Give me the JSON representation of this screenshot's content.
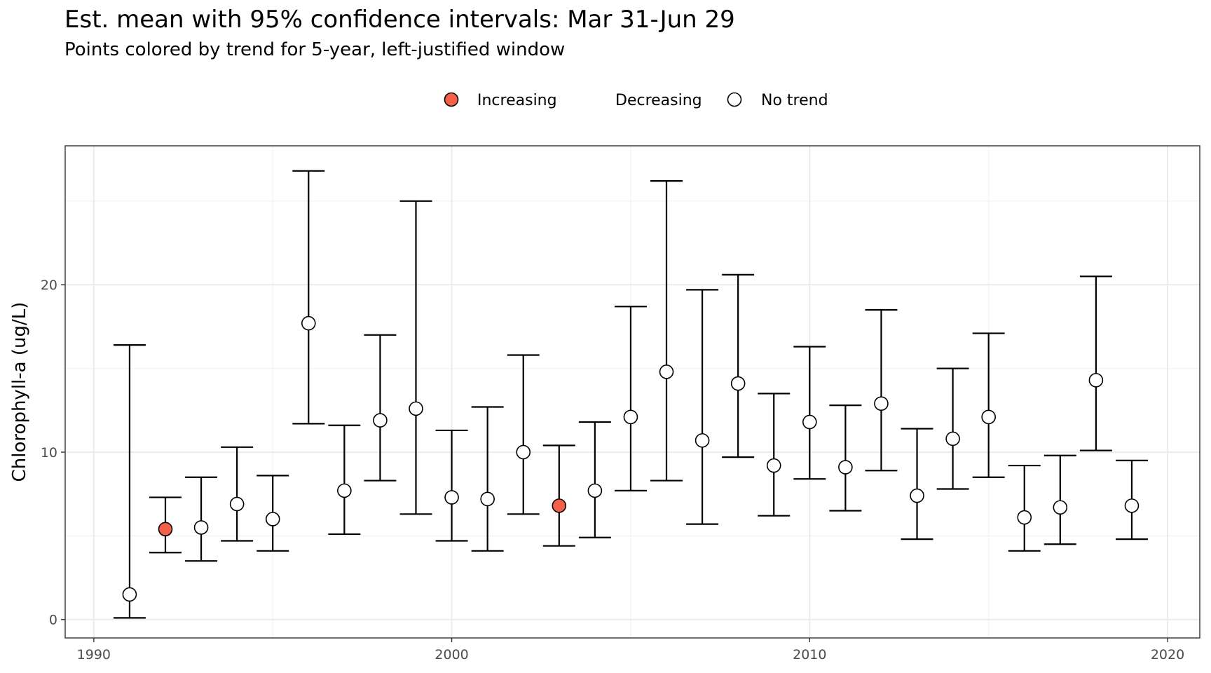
{
  "chart_data": {
    "type": "scatter",
    "title": "Est. mean with 95% confidence intervals: Mar 31-Jun 29",
    "subtitle": "Points colored by trend for 5-year, left-justified window",
    "xlabel": "",
    "ylabel": "Chlorophyll-a (ug/L)",
    "xlim": [
      1989.2,
      2020.9
    ],
    "ylim": [
      -1.1,
      28.3
    ],
    "x_ticks": [
      1990,
      2000,
      2010,
      2020
    ],
    "y_ticks": [
      0,
      10,
      20
    ],
    "grid": true,
    "legend": {
      "position": "top",
      "entries": [
        {
          "label": "Increasing",
          "fill": "#F4614B"
        },
        {
          "label": "Decreasing",
          "fill": ""
        },
        {
          "label": "No trend",
          "fill": "#FFFFFF"
        }
      ]
    },
    "colors": {
      "Increasing": "#F4614B",
      "No trend": "#FFFFFF",
      "Decreasing": "#4A90D9"
    },
    "points": [
      {
        "x": 1991,
        "mean": 1.5,
        "lower": 0.1,
        "upper": 16.4,
        "trend": "No trend"
      },
      {
        "x": 1992,
        "mean": 5.4,
        "lower": 4.0,
        "upper": 7.3,
        "trend": "Increasing"
      },
      {
        "x": 1993,
        "mean": 5.5,
        "lower": 3.5,
        "upper": 8.5,
        "trend": "No trend"
      },
      {
        "x": 1994,
        "mean": 6.9,
        "lower": 4.7,
        "upper": 10.3,
        "trend": "No trend"
      },
      {
        "x": 1995,
        "mean": 6.0,
        "lower": 4.1,
        "upper": 8.6,
        "trend": "No trend"
      },
      {
        "x": 1996,
        "mean": 17.7,
        "lower": 11.7,
        "upper": 26.8,
        "trend": "No trend"
      },
      {
        "x": 1997,
        "mean": 7.7,
        "lower": 5.1,
        "upper": 11.6,
        "trend": "No trend"
      },
      {
        "x": 1998,
        "mean": 11.9,
        "lower": 8.3,
        "upper": 17.0,
        "trend": "No trend"
      },
      {
        "x": 1999,
        "mean": 12.6,
        "lower": 6.3,
        "upper": 25.0,
        "trend": "No trend"
      },
      {
        "x": 2000,
        "mean": 7.3,
        "lower": 4.7,
        "upper": 11.3,
        "trend": "No trend"
      },
      {
        "x": 2001,
        "mean": 7.2,
        "lower": 4.1,
        "upper": 12.7,
        "trend": "No trend"
      },
      {
        "x": 2002,
        "mean": 10.0,
        "lower": 6.3,
        "upper": 15.8,
        "trend": "No trend"
      },
      {
        "x": 2003,
        "mean": 6.8,
        "lower": 4.4,
        "upper": 10.4,
        "trend": "Increasing"
      },
      {
        "x": 2004,
        "mean": 7.7,
        "lower": 4.9,
        "upper": 11.8,
        "trend": "No trend"
      },
      {
        "x": 2005,
        "mean": 12.1,
        "lower": 7.7,
        "upper": 18.7,
        "trend": "No trend"
      },
      {
        "x": 2006,
        "mean": 14.8,
        "lower": 8.3,
        "upper": 26.2,
        "trend": "No trend"
      },
      {
        "x": 2007,
        "mean": 10.7,
        "lower": 5.7,
        "upper": 19.7,
        "trend": "No trend"
      },
      {
        "x": 2008,
        "mean": 14.1,
        "lower": 9.7,
        "upper": 20.6,
        "trend": "No trend"
      },
      {
        "x": 2009,
        "mean": 9.2,
        "lower": 6.2,
        "upper": 13.5,
        "trend": "No trend"
      },
      {
        "x": 2010,
        "mean": 11.8,
        "lower": 8.4,
        "upper": 16.3,
        "trend": "No trend"
      },
      {
        "x": 2011,
        "mean": 9.1,
        "lower": 6.5,
        "upper": 12.8,
        "trend": "No trend"
      },
      {
        "x": 2012,
        "mean": 12.9,
        "lower": 8.9,
        "upper": 18.5,
        "trend": "No trend"
      },
      {
        "x": 2013,
        "mean": 7.4,
        "lower": 4.8,
        "upper": 11.4,
        "trend": "No trend"
      },
      {
        "x": 2014,
        "mean": 10.8,
        "lower": 7.8,
        "upper": 15.0,
        "trend": "No trend"
      },
      {
        "x": 2015,
        "mean": 12.1,
        "lower": 8.5,
        "upper": 17.1,
        "trend": "No trend"
      },
      {
        "x": 2016,
        "mean": 6.1,
        "lower": 4.1,
        "upper": 9.2,
        "trend": "No trend"
      },
      {
        "x": 2017,
        "mean": 6.7,
        "lower": 4.5,
        "upper": 9.8,
        "trend": "No trend"
      },
      {
        "x": 2018,
        "mean": 14.3,
        "lower": 10.1,
        "upper": 20.5,
        "trend": "No trend"
      },
      {
        "x": 2019,
        "mean": 6.8,
        "lower": 4.8,
        "upper": 9.5,
        "trend": "No trend"
      }
    ]
  }
}
